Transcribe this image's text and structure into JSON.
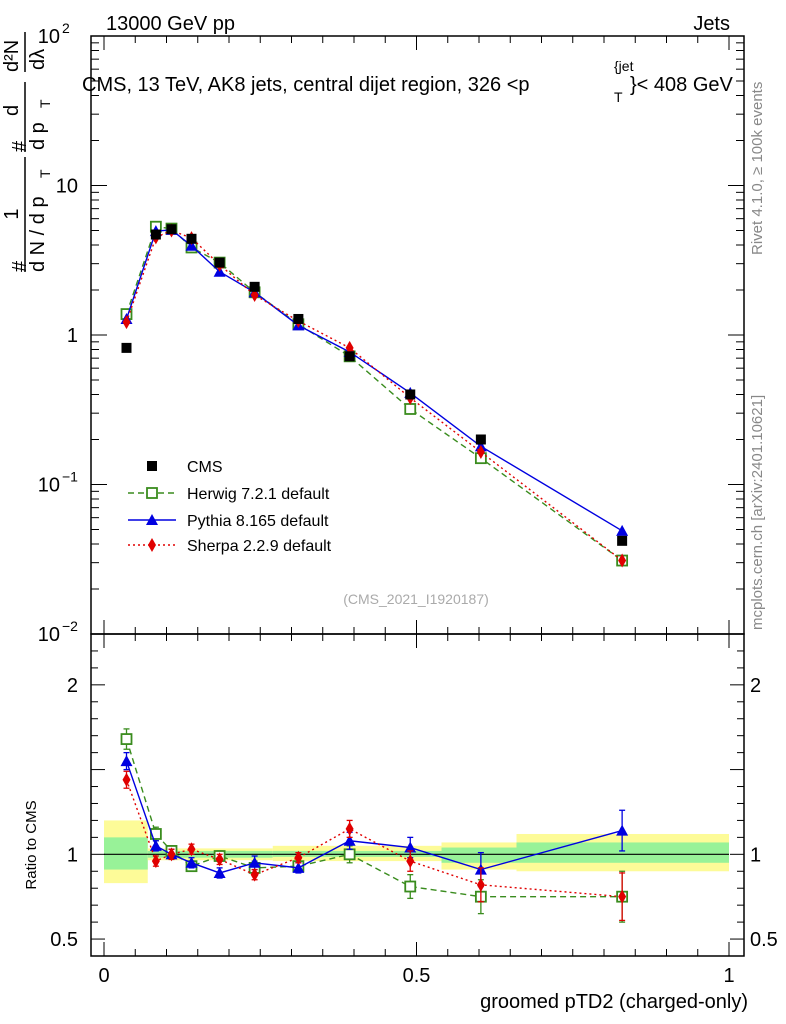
{
  "header": {
    "energy_label": "13000 GeV pp",
    "process_label": "Jets"
  },
  "side_labels": {
    "rivet": "Rivet 4.1.0, ≥ 100k events",
    "mcplots": "mcplots.cern.ch [arXiv:2401.10621]"
  },
  "colors": {
    "cms": "#000000",
    "herwig": "#3a8c1e",
    "pythia": "#0000e0",
    "sherpa": "#e00000",
    "band_inner": "#98f298",
    "band_outer": "#fdfb98"
  },
  "chart_data": [
    {
      "type": "scatter",
      "panel": "main",
      "title": "CMS, 13 TeV, AK8 jets, central dijet region, 326 <p",
      "title_sup": "{jet",
      "title_sub": "T",
      "title_end": "}< 408 GeV",
      "watermark": "(CMS_2021_I1920187)",
      "yscale": "log",
      "xlim": [
        0,
        1
      ],
      "ylim": [
        0.01,
        100
      ],
      "ylabel": {
        "num_hash": "#",
        "num_frac_top": "1",
        "num_frac_bot": "d N / d p",
        "num_frac_bot_sub": "T",
        "hash2": "#",
        "d_top": "d",
        "d_bot": "d p",
        "d_bot_sub": "T",
        "d2n": "d²N",
        "dlambda": "dλ"
      },
      "y_tick_labels": [
        {
          "value": 100,
          "base": "10",
          "exp": "2"
        },
        {
          "value": 10,
          "base": "10",
          "exp": ""
        },
        {
          "value": 1,
          "base": "1",
          "exp": ""
        },
        {
          "value": 0.1,
          "base": "10",
          "exp": "−1"
        },
        {
          "value": 0.01,
          "base": "10",
          "exp": "−2"
        }
      ],
      "legend": {
        "position": "bottom-left",
        "entries": [
          "CMS",
          "Herwig 7.2.1 default",
          "Pythia 8.165 default",
          "Sherpa 2.2.9 default"
        ]
      },
      "series": [
        {
          "name": "CMS",
          "style": "square-filled",
          "x": [
            0.036,
            0.083,
            0.108,
            0.14,
            0.185,
            0.241,
            0.311,
            0.393,
            0.49,
            0.603,
            0.829
          ],
          "y": [
            0.82,
            4.7,
            5.1,
            4.4,
            3.05,
            2.1,
            1.28,
            0.72,
            0.4,
            0.2,
            0.042
          ]
        },
        {
          "name": "Herwig 7.2.1 default",
          "style": "square-open-dashed",
          "x": [
            0.036,
            0.083,
            0.108,
            0.14,
            0.185,
            0.241,
            0.311,
            0.393,
            0.49,
            0.603,
            0.829
          ],
          "y": [
            1.38,
            5.3,
            5.15,
            3.85,
            3.05,
            1.93,
            1.18,
            0.72,
            0.32,
            0.15,
            0.031
          ]
        },
        {
          "name": "Pythia 8.165 default",
          "style": "triangle-solid",
          "x": [
            0.036,
            0.083,
            0.108,
            0.14,
            0.185,
            0.241,
            0.311,
            0.393,
            0.49,
            0.603,
            0.829
          ],
          "y": [
            1.28,
            4.95,
            5.05,
            3.95,
            2.65,
            1.93,
            1.16,
            0.77,
            0.41,
            0.18,
            0.049
          ]
        },
        {
          "name": "Sherpa 2.2.9 default",
          "style": "diamond-dotted",
          "x": [
            0.036,
            0.083,
            0.108,
            0.14,
            0.185,
            0.241,
            0.311,
            0.393,
            0.49,
            0.603,
            0.829
          ],
          "y": [
            1.22,
            4.5,
            5.0,
            4.45,
            2.95,
            1.85,
            1.24,
            0.82,
            0.38,
            0.165,
            0.031
          ]
        }
      ]
    },
    {
      "type": "scatter",
      "panel": "ratio",
      "ylabel": "Ratio to CMS",
      "xlabel": "groomed pTD2 (charged-only)",
      "xlim": [
        0,
        1
      ],
      "ylim": [
        0.4,
        2.3
      ],
      "y_tick_labels": [
        "0.5",
        "1",
        "2"
      ],
      "y_ticks": [
        0.5,
        1,
        2
      ],
      "x_tick_labels": [
        "0",
        "0.5",
        "1"
      ],
      "x_ticks": [
        0,
        0.5,
        1
      ],
      "uncertainty_bands": [
        {
          "x0": 0.0,
          "x1": 0.07,
          "inner": [
            0.91,
            1.1
          ],
          "outer": [
            0.83,
            1.2
          ]
        },
        {
          "x0": 0.07,
          "x1": 0.27,
          "inner": [
            0.98,
            1.02
          ],
          "outer": [
            0.965,
            1.035
          ]
        },
        {
          "x0": 0.27,
          "x1": 0.54,
          "inner": [
            0.985,
            1.02
          ],
          "outer": [
            0.96,
            1.05
          ]
        },
        {
          "x0": 0.54,
          "x1": 0.66,
          "inner": [
            0.95,
            1.04
          ],
          "outer": [
            0.91,
            1.07
          ]
        },
        {
          "x0": 0.66,
          "x1": 1.0,
          "inner": [
            0.95,
            1.07
          ],
          "outer": [
            0.9,
            1.12
          ]
        }
      ],
      "series": [
        {
          "name": "Herwig 7.2.1 default",
          "style": "square-open-dashed",
          "x": [
            0.036,
            0.083,
            0.108,
            0.14,
            0.185,
            0.241,
            0.311,
            0.393,
            0.49,
            0.603,
            0.829
          ],
          "y": [
            1.68,
            1.12,
            1.02,
            0.93,
            0.99,
            0.92,
            0.93,
            1.0,
            0.81,
            0.75,
            0.75
          ],
          "err": [
            0.06,
            0.04,
            0.03,
            0.03,
            0.03,
            0.04,
            0.03,
            0.05,
            0.07,
            0.1,
            0.15
          ]
        },
        {
          "name": "Pythia 8.165 default",
          "style": "triangle-solid",
          "x": [
            0.036,
            0.083,
            0.108,
            0.14,
            0.185,
            0.241,
            0.311,
            0.393,
            0.49,
            0.603,
            0.829
          ],
          "y": [
            1.55,
            1.05,
            1.0,
            0.95,
            0.89,
            0.95,
            0.92,
            1.08,
            1.04,
            0.91,
            1.14
          ],
          "err": [
            0.05,
            0.03,
            0.03,
            0.03,
            0.03,
            0.04,
            0.03,
            0.05,
            0.06,
            0.1,
            0.12
          ]
        },
        {
          "name": "Sherpa 2.2.9 default",
          "style": "diamond-dotted",
          "x": [
            0.036,
            0.083,
            0.108,
            0.14,
            0.185,
            0.241,
            0.311,
            0.393,
            0.49,
            0.603,
            0.829
          ],
          "y": [
            1.44,
            0.96,
            1.0,
            1.03,
            0.97,
            0.88,
            0.98,
            1.15,
            0.96,
            0.82,
            0.75
          ],
          "err": [
            0.05,
            0.03,
            0.03,
            0.03,
            0.03,
            0.03,
            0.03,
            0.05,
            0.06,
            0.1,
            0.14
          ]
        }
      ]
    }
  ]
}
